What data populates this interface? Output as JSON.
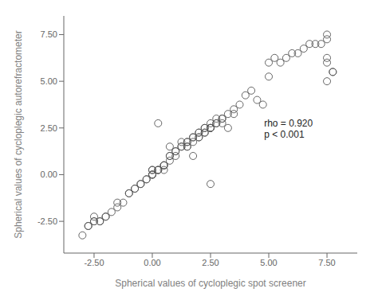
{
  "chart_data": {
    "type": "scatter",
    "x": [
      -3.0,
      -2.75,
      -2.75,
      -2.5,
      -2.5,
      -2.5,
      -2.25,
      -2.25,
      -2.0,
      -2.0,
      -1.75,
      -1.5,
      -1.5,
      -1.25,
      -1.0,
      -1.0,
      -0.75,
      -0.75,
      -0.5,
      -0.5,
      -0.25,
      -0.25,
      0.0,
      0.0,
      0.0,
      0.0,
      0.0,
      0.25,
      0.25,
      0.25,
      0.5,
      0.5,
      0.5,
      0.5,
      0.75,
      0.75,
      0.75,
      1.0,
      1.0,
      1.0,
      1.25,
      1.25,
      1.25,
      1.5,
      1.5,
      1.5,
      1.5,
      1.75,
      1.75,
      1.75,
      2.0,
      2.0,
      2.0,
      2.0,
      2.25,
      2.25,
      2.25,
      2.25,
      2.5,
      2.5,
      2.5,
      2.5,
      2.5,
      2.75,
      2.75,
      2.75,
      3.0,
      3.0,
      3.0,
      3.25,
      3.25,
      3.5,
      3.5,
      3.75,
      4.0,
      4.25,
      4.5,
      4.75,
      5.0,
      5.0,
      5.25,
      5.5,
      5.75,
      6.0,
      6.25,
      6.5,
      6.75,
      7.0,
      7.25,
      7.5,
      7.5,
      7.5,
      7.5,
      7.5,
      7.75,
      7.75,
      2.5,
      0.25,
      1.75,
      0.75
    ],
    "values": [
      -3.25,
      -2.75,
      -2.75,
      -2.5,
      -2.5,
      -2.25,
      -2.5,
      -2.5,
      -2.25,
      -2.25,
      -2.0,
      -1.75,
      -1.5,
      -1.5,
      -1.0,
      -1.0,
      -0.75,
      -0.75,
      -0.5,
      -0.5,
      -0.25,
      -0.25,
      0.0,
      0.0,
      0.25,
      0.25,
      0.0,
      0.25,
      0.25,
      0.25,
      0.5,
      0.5,
      0.5,
      0.25,
      0.75,
      1.0,
      1.0,
      1.25,
      1.25,
      1.0,
      1.5,
      1.5,
      1.75,
      1.5,
      1.75,
      1.75,
      1.5,
      1.75,
      2.0,
      2.0,
      2.0,
      2.25,
      2.25,
      2.0,
      2.25,
      2.5,
      2.5,
      2.25,
      2.5,
      2.5,
      2.75,
      2.5,
      2.5,
      2.75,
      2.75,
      3.0,
      2.75,
      3.0,
      3.0,
      3.25,
      2.5,
      3.5,
      3.25,
      3.75,
      4.25,
      4.5,
      4.0,
      3.75,
      5.25,
      6.0,
      6.25,
      6.0,
      6.25,
      6.5,
      6.5,
      6.75,
      7.0,
      7.0,
      7.0,
      7.25,
      7.5,
      5.0,
      6.25,
      6.0,
      5.5,
      5.5,
      -0.5,
      2.75,
      1.0,
      1.5
    ],
    "xlim": [
      -3.8,
      8.8
    ],
    "ylim": [
      -4.2,
      8.5
    ],
    "xticks": [
      {
        "value": -2.5,
        "label": "-2.50"
      },
      {
        "value": 0.0,
        "label": "0.00"
      },
      {
        "value": 2.5,
        "label": "2.50"
      },
      {
        "value": 5.0,
        "label": "5.00"
      },
      {
        "value": 7.5,
        "label": "7.50"
      }
    ],
    "yticks": [
      {
        "value": -2.5,
        "label": "-2.50"
      },
      {
        "value": 0.0,
        "label": "0.00"
      },
      {
        "value": 2.5,
        "label": "2.50"
      },
      {
        "value": 5.0,
        "label": "5.00"
      },
      {
        "value": 7.5,
        "label": "7.50"
      }
    ],
    "xlabel": "Spherical values of cycloplegic spot screener",
    "ylabel": "Spherical values of cycloplegic autorefractometer",
    "annotations": [
      {
        "text": [
          "rho = 0.920",
          "p < 0.001"
        ],
        "x": 4.8,
        "y": 2.4
      }
    ],
    "color": "#555555",
    "marker": "open_circle",
    "grid": false
  }
}
